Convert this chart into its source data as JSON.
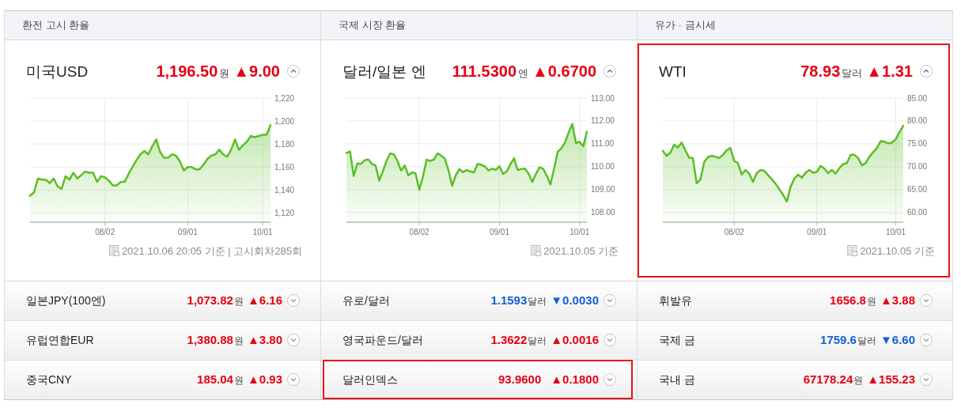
{
  "chart_data": [
    {
      "type": "area",
      "title": "환전 고시 환율",
      "subtitle": "미국USD",
      "annotations": [
        "1,196.50",
        "원",
        "▲9.00",
        "2021.10.06 20:05 기준 | 고시회차285회"
      ],
      "categories": [
        null,
        null,
        null,
        null,
        null,
        null,
        null,
        null,
        null,
        null,
        null,
        null,
        null,
        null,
        null,
        null,
        null,
        null,
        null,
        "08/02",
        null,
        null,
        null,
        null,
        null,
        null,
        null,
        null,
        null,
        null,
        null,
        null,
        null,
        null,
        null,
        null,
        null,
        null,
        null,
        null,
        "09/01",
        null,
        null,
        null,
        null,
        null,
        null,
        null,
        null,
        null,
        null,
        null,
        null,
        null,
        null,
        null,
        null,
        null,
        null,
        "10/01",
        null,
        null
      ],
      "series": [
        {
          "color": "#5abf24",
          "values": [
            1135,
            1138,
            1150,
            1149,
            1149,
            1146,
            1150,
            1143,
            1141,
            1152,
            1149,
            1155,
            1150,
            1153,
            1156,
            1155,
            1155,
            1147,
            1152,
            1151,
            1148,
            1144,
            1144,
            1147,
            1147,
            1154,
            1160,
            1166,
            1171,
            1174,
            1171,
            1178,
            1184,
            1173,
            1168,
            1168,
            1171,
            1170,
            1165,
            1157,
            1160,
            1160,
            1158,
            1158,
            1162,
            1167,
            1170,
            1171,
            1175,
            1171,
            1169,
            1175,
            1184,
            1175,
            1179,
            1182,
            1187,
            1186,
            1187,
            1188,
            1188,
            1196.5
          ]
        }
      ],
      "ylim": [
        1112,
        1220
      ],
      "yticks": [
        {
          "value": 1120,
          "label": "1,120"
        },
        {
          "value": 1140,
          "label": "1,140"
        },
        {
          "value": 1160,
          "label": "1,160"
        },
        {
          "value": 1180,
          "label": "1,180"
        },
        {
          "value": 1200,
          "label": "1,200"
        },
        {
          "value": 1220,
          "label": "1,220"
        }
      ],
      "grid": true
    },
    {
      "type": "area",
      "title": "국제 시장 환율",
      "subtitle": "달러/일본 엔",
      "annotations": [
        "111.5300",
        "엔",
        "▲0.6700",
        "2021.10.05 기준"
      ],
      "categories": [
        null,
        null,
        null,
        null,
        null,
        null,
        null,
        null,
        null,
        null,
        null,
        null,
        null,
        null,
        null,
        null,
        null,
        null,
        null,
        null,
        "08/02",
        null,
        null,
        null,
        null,
        null,
        null,
        null,
        null,
        null,
        null,
        null,
        null,
        null,
        null,
        null,
        null,
        null,
        null,
        null,
        null,
        null,
        "09/01",
        null,
        null,
        null,
        null,
        null,
        null,
        null,
        null,
        null,
        null,
        null,
        null,
        null,
        null,
        null,
        null,
        null,
        null,
        null,
        null,
        null,
        "10/01",
        null,
        null
      ],
      "series": [
        {
          "color": "#5abf24",
          "values": [
            110.6,
            110.66,
            109.59,
            110.14,
            110.12,
            110.28,
            110.31,
            110.12,
            110.05,
            109.39,
            109.8,
            110.25,
            110.58,
            110.54,
            110.25,
            109.83,
            110.05,
            109.62,
            109.75,
            109.7,
            108.99,
            109.56,
            110.3,
            110.25,
            110.31,
            110.58,
            110.49,
            110.35,
            109.85,
            109.16,
            109.62,
            109.89,
            109.76,
            109.85,
            109.79,
            109.74,
            110.12,
            110.08,
            110.0,
            109.83,
            109.91,
            109.86,
            110.02,
            109.68,
            109.79,
            110.1,
            110.37,
            109.85,
            109.9,
            109.91,
            109.7,
            109.33,
            109.68,
            109.97,
            109.91,
            109.6,
            109.22,
            109.91,
            110.65,
            110.8,
            111.06,
            111.5,
            111.87,
            111.03,
            111.09,
            110.89,
            111.53
          ]
        }
      ],
      "ylim": [
        107.57,
        113
      ],
      "yticks": [
        {
          "value": 108,
          "label": "108.00"
        },
        {
          "value": 109,
          "label": "109.00"
        },
        {
          "value": 110,
          "label": "110.00"
        },
        {
          "value": 111,
          "label": "111.00"
        },
        {
          "value": 112,
          "label": "112.00"
        },
        {
          "value": 113,
          "label": "113.00"
        }
      ],
      "grid": true
    },
    {
      "type": "area",
      "title": "유가 · 금시세",
      "subtitle": "WTI",
      "annotations": [
        "78.93",
        "달러",
        "▲1.31",
        "2021.10.05 기준"
      ],
      "categories": [
        null,
        null,
        null,
        null,
        null,
        null,
        null,
        null,
        null,
        null,
        null,
        null,
        null,
        null,
        null,
        null,
        null,
        null,
        null,
        "08/02",
        null,
        null,
        null,
        null,
        null,
        null,
        null,
        null,
        null,
        null,
        null,
        null,
        null,
        null,
        null,
        null,
        null,
        null,
        null,
        null,
        null,
        "09/01",
        null,
        null,
        null,
        null,
        null,
        null,
        null,
        null,
        null,
        null,
        null,
        null,
        null,
        null,
        null,
        null,
        null,
        null,
        null,
        null,
        "10/01",
        null,
        null
      ],
      "series": [
        {
          "color": "#5abf24",
          "values": [
            73.5,
            72.4,
            73.1,
            74.8,
            74.2,
            75.3,
            73.6,
            72.0,
            71.9,
            66.4,
            67.2,
            71.0,
            72.1,
            72.4,
            72.2,
            71.9,
            72.6,
            73.6,
            74.1,
            71.3,
            70.8,
            68.3,
            69.3,
            68.5,
            66.7,
            68.6,
            69.3,
            69.1,
            68.2,
            67.3,
            66.3,
            65.1,
            63.9,
            62.4,
            65.6,
            67.4,
            68.3,
            67.6,
            68.7,
            69.3,
            68.7,
            68.9,
            70.2,
            69.6,
            68.6,
            69.3,
            68.5,
            69.7,
            70.6,
            70.8,
            72.6,
            72.6,
            71.9,
            70.3,
            70.8,
            72.2,
            73.2,
            74.1,
            75.6,
            75.5,
            75.1,
            75.3,
            76.0,
            77.6,
            78.93
          ]
        }
      ],
      "ylim": [
        57.9,
        85
      ],
      "yticks": [
        {
          "value": 60,
          "label": "60.00"
        },
        {
          "value": 65,
          "label": "65.00"
        },
        {
          "value": 70,
          "label": "70.00"
        },
        {
          "value": 75,
          "label": "75.00"
        },
        {
          "value": 80,
          "label": "80.00"
        },
        {
          "value": 85,
          "label": "85.00"
        }
      ],
      "grid": true
    },
    {
      "type": "other",
      "title": "일본JPY(100엔)",
      "annotations": [
        "1,073.82",
        "원",
        "▲6.16"
      ],
      "color": "#e60012"
    },
    {
      "type": "other",
      "title": "유로/달러",
      "annotations": [
        "1.1593",
        "달러",
        "▼0.0030"
      ],
      "color": "#1560d4"
    },
    {
      "type": "other",
      "title": "휘발유",
      "annotations": [
        "1656.8",
        "원",
        "▲3.88"
      ],
      "color": "#e60012"
    },
    {
      "type": "other",
      "title": "유럽연합EUR",
      "annotations": [
        "1,380.88",
        "원",
        "▲3.80"
      ],
      "color": "#e60012"
    },
    {
      "type": "other",
      "title": "영국파운드/달러",
      "annotations": [
        "1.3622",
        "달러",
        "▲0.0016"
      ],
      "color": "#e60012"
    },
    {
      "type": "other",
      "title": "국제 금",
      "annotations": [
        "1759.6",
        "달러",
        "▼6.60"
      ],
      "color": "#1560d4"
    },
    {
      "type": "other",
      "title": "중국CNY",
      "annotations": [
        "185.04",
        "원",
        "▲0.93"
      ],
      "color": "#e60012"
    },
    {
      "type": "other",
      "title": "달러인덱스",
      "annotations": [
        "93.9600",
        "▲0.1800"
      ],
      "color": "#e60012"
    },
    {
      "type": "other",
      "title": "국내 금",
      "annotations": [
        "67178.24",
        "원",
        "▲155.23"
      ],
      "color": "#e60012"
    }
  ]
}
